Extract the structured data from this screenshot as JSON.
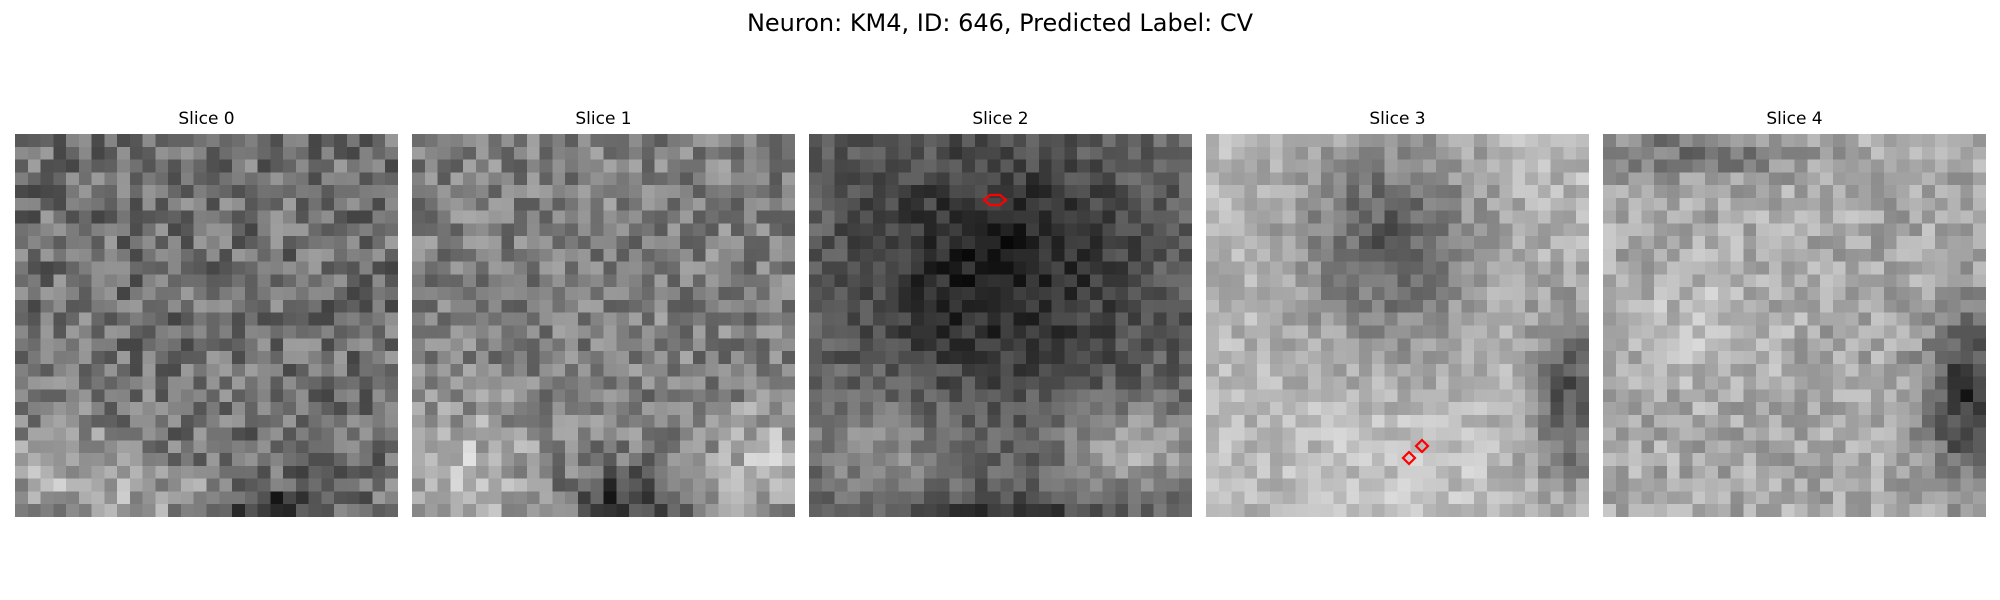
{
  "figure": {
    "title": "Neuron: KM4, ID: 646, Predicted Label: CV"
  },
  "slices": [
    {
      "title": "Slice 0",
      "contours": []
    },
    {
      "title": "Slice 1",
      "contours": []
    },
    {
      "title": "Slice 2",
      "contours": [
        {
          "shape": "hexagon",
          "color": "#ff0000"
        }
      ]
    },
    {
      "title": "Slice 3",
      "contours": [
        {
          "shape": "diamond",
          "color": "#ff0000"
        },
        {
          "shape": "diamond",
          "color": "#ff0000"
        }
      ]
    },
    {
      "title": "Slice 4",
      "contours": []
    }
  ],
  "colormap": "gray",
  "contour_color": "#ff0000"
}
